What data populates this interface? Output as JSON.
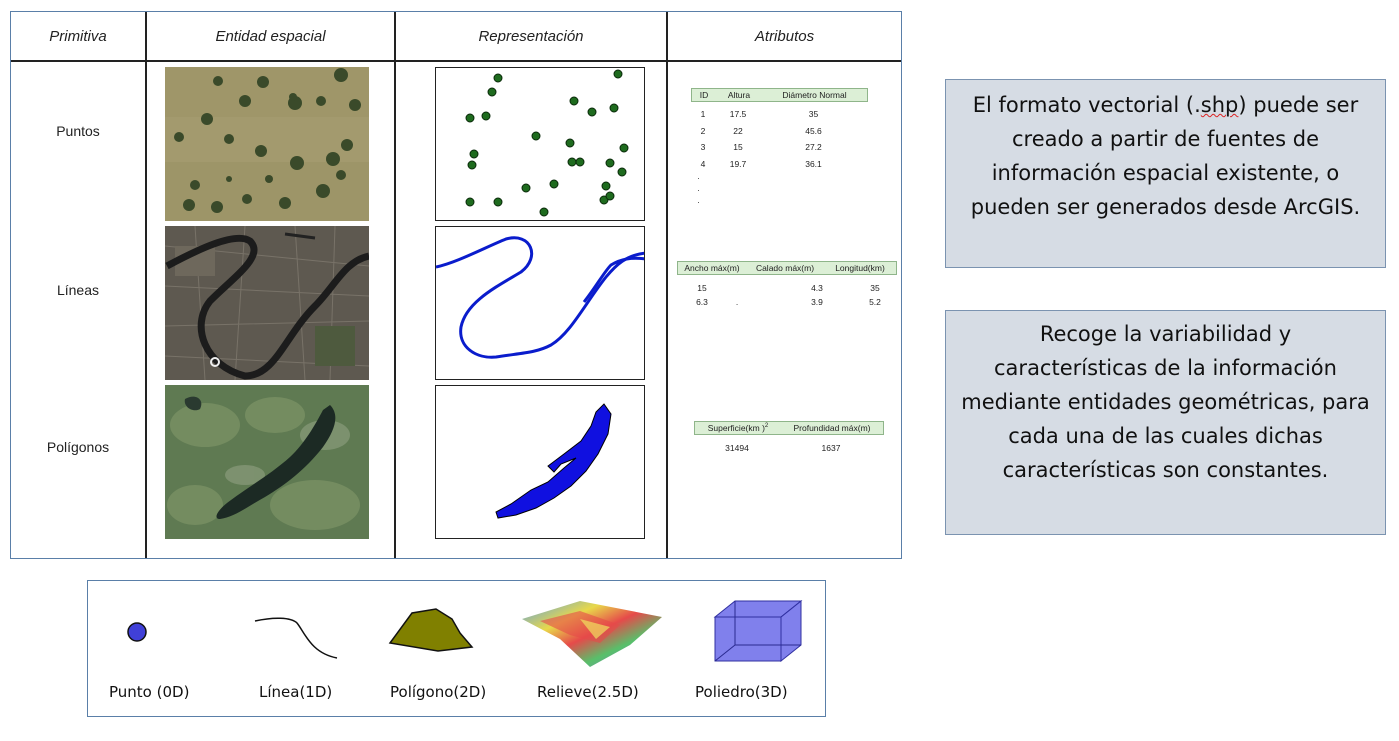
{
  "table": {
    "headers": {
      "primitive": "Primitiva",
      "entity": "Entidad espacial",
      "representation": "Representación",
      "attributes": "Atributos"
    },
    "rows": [
      {
        "label": "Puntos"
      },
      {
        "label": "Líneas"
      },
      {
        "label": "Polígonos"
      }
    ],
    "points_attributes": {
      "headers": [
        "ID",
        "Altura",
        "Diámetro Normal"
      ],
      "rows": [
        [
          "1",
          "17.5",
          "35"
        ],
        [
          "2",
          "22",
          "45.6"
        ],
        [
          "3",
          "15",
          "27.2"
        ],
        [
          "4",
          "19.7",
          "36.1"
        ]
      ],
      "ellipsis": [
        "·",
        "·",
        "·"
      ]
    },
    "lines_attributes": {
      "headers": [
        "Ancho máx(m)",
        "Calado máx(m)",
        "Longitud(km)"
      ],
      "rows": [
        [
          "15",
          "4.3",
          "35"
        ],
        [
          "6.3",
          "3.9",
          "5.2"
        ]
      ],
      "stray_mark": "."
    },
    "polygons_attributes": {
      "headers": [
        "Superficie(km )",
        "Profundidad máx(m)"
      ],
      "superscript": "2",
      "rows": [
        [
          "31494",
          "1637"
        ]
      ]
    }
  },
  "notes": [
    {
      "before": "El formato vectorial (.",
      "squiggle": "shp",
      "after": ") puede ser creado a partir de fuentes de información espacial existente, o pueden ser generados desde ArcGIS."
    },
    {
      "text": "Recoge la variabilidad y características de la información mediante entidades geométricas, para cada una de las cuales dichas características son constantes."
    }
  ],
  "legend": [
    {
      "label": "Punto (0D)",
      "icon": "point-icon"
    },
    {
      "label": "Línea(1D)",
      "icon": "line-icon"
    },
    {
      "label": "Polígono(2D)",
      "icon": "polygon-icon"
    },
    {
      "label": "Relieve(2.5D)",
      "icon": "relief-icon"
    },
    {
      "label": "Poliedro(3D)",
      "icon": "polyhedron-icon"
    }
  ],
  "colors": {
    "note_bg": "#d6dce4",
    "point_fill": "#4040d8",
    "polygon_fill": "#808000",
    "polyhedron_fill": "#5555e6",
    "rep_line": "#0a1ccc",
    "rep_point": "#1e6b1e"
  }
}
